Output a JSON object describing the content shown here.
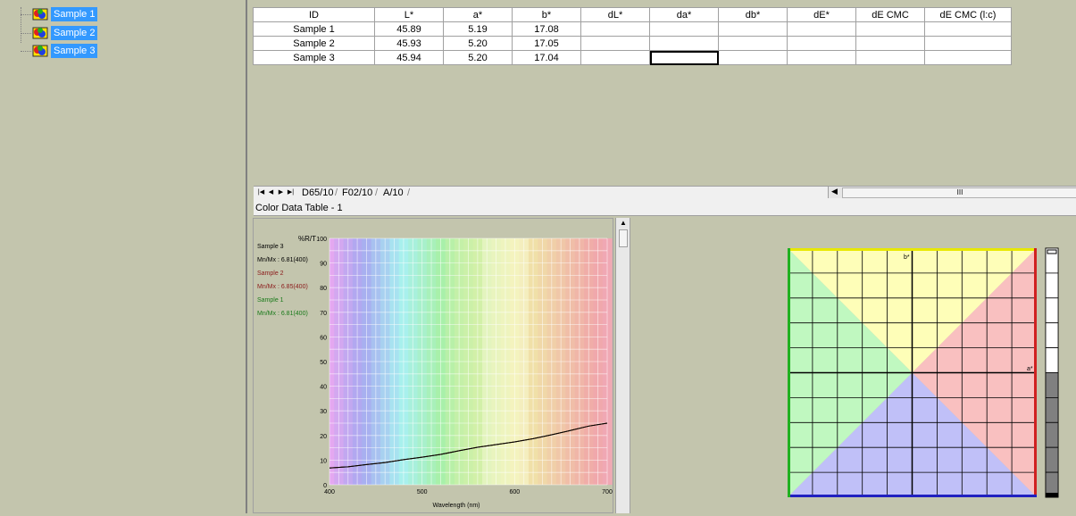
{
  "tree": {
    "items": [
      {
        "label": "Sample 1"
      },
      {
        "label": "Sample 2"
      },
      {
        "label": "Sample 3"
      }
    ]
  },
  "table": {
    "columns": [
      "ID",
      "L*",
      "a*",
      "b*",
      "dL*",
      "da*",
      "db*",
      "dE*",
      "dE CMC",
      "dE CMC (l:c)"
    ],
    "rows": [
      [
        "Sample 1",
        "45.89",
        "5.19",
        "17.08",
        "",
        "",
        "",
        "",
        "",
        ""
      ],
      [
        "Sample 2",
        "45.93",
        "5.20",
        "17.05",
        "",
        "",
        "",
        "",
        "",
        ""
      ],
      [
        "Sample 3",
        "45.94",
        "5.20",
        "17.04",
        "",
        "",
        "",
        "",
        "",
        ""
      ]
    ],
    "selected_cell": {
      "row": 2,
      "col": 5
    }
  },
  "tabs": [
    "D65/10",
    "F02/10",
    "A/10"
  ],
  "hscroll_thumb_glyph": "III",
  "panel_title": "Color Data Table - 1",
  "spectral": {
    "legend": [
      {
        "name": "Sample 3",
        "minmax": "Mn/Mx : 6.81(400)",
        "color": "#000000"
      },
      {
        "name": "Sample 2",
        "minmax": "Mn/Mx : 6.85(400)",
        "color": "#8b1a1a"
      },
      {
        "name": "Sample 1",
        "minmax": "Mn/Mx : 6.81(400)",
        "color": "#1a7a1a"
      }
    ],
    "y_unit": "%R/T",
    "x_label": "Wavelength (nm)"
  },
  "ab_plot": {
    "a_label": "a*",
    "b_label": "b*"
  },
  "chart_data": [
    {
      "type": "line",
      "title": "",
      "xlabel": "Wavelength (nm)",
      "ylabel": "%R/T",
      "xlim": [
        400,
        700
      ],
      "ylim": [
        0,
        100
      ],
      "x_ticks": [
        400,
        500,
        600,
        700
      ],
      "y_ticks": [
        0,
        10,
        20,
        30,
        40,
        50,
        60,
        70,
        80,
        90,
        100
      ],
      "grid": true,
      "x": [
        400,
        420,
        440,
        460,
        480,
        500,
        520,
        540,
        560,
        580,
        600,
        620,
        640,
        660,
        680,
        700
      ],
      "series": [
        {
          "name": "Sample 3",
          "values": [
            6.8,
            7.3,
            8.2,
            9.0,
            10.2,
            11.2,
            12.3,
            13.8,
            15.2,
            16.3,
            17.4,
            18.7,
            20.3,
            22.0,
            23.8,
            25.0
          ]
        },
        {
          "name": "Sample 2",
          "values": [
            6.85,
            7.3,
            8.2,
            9.0,
            10.2,
            11.2,
            12.3,
            13.8,
            15.2,
            16.3,
            17.4,
            18.7,
            20.3,
            22.0,
            23.8,
            25.0
          ]
        },
        {
          "name": "Sample 1",
          "values": [
            6.81,
            7.3,
            8.2,
            9.0,
            10.2,
            11.2,
            12.3,
            13.8,
            15.2,
            16.3,
            17.4,
            18.7,
            20.3,
            22.0,
            23.8,
            25.0
          ]
        }
      ]
    }
  ]
}
